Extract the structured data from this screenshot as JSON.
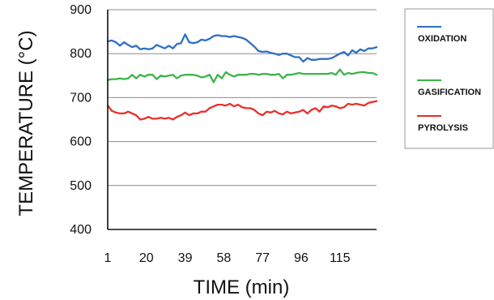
{
  "chart_data": {
    "type": "line",
    "xlabel": "TIME (min)",
    "ylabel": "TEMPERATURE (°C)",
    "xlim": [
      1,
      133
    ],
    "ylim": [
      400,
      900
    ],
    "x_ticks": [
      1,
      20,
      39,
      58,
      77,
      96,
      115
    ],
    "y_ticks": [
      900,
      800,
      700,
      600,
      500,
      400
    ],
    "grid": "horizontal",
    "legend_position": "right",
    "x": [
      1,
      3,
      5,
      7,
      9,
      11,
      13,
      15,
      17,
      19,
      21,
      23,
      25,
      27,
      29,
      31,
      33,
      35,
      37,
      39,
      41,
      43,
      45,
      47,
      49,
      51,
      53,
      55,
      57,
      59,
      61,
      63,
      65,
      67,
      69,
      71,
      73,
      75,
      77,
      79,
      81,
      83,
      85,
      87,
      89,
      91,
      93,
      95,
      97,
      99,
      101,
      103,
      105,
      107,
      109,
      111,
      113,
      115,
      117,
      119,
      121,
      123,
      125,
      127,
      129,
      131,
      133
    ],
    "series": [
      {
        "name": "OXIDATION",
        "color": "#2f6fc2",
        "values": [
          828,
          830,
          826,
          818,
          826,
          820,
          815,
          818,
          810,
          812,
          810,
          812,
          820,
          816,
          812,
          818,
          812,
          822,
          824,
          844,
          826,
          824,
          826,
          832,
          830,
          834,
          840,
          842,
          840,
          840,
          838,
          840,
          838,
          836,
          832,
          824,
          816,
          806,
          804,
          805,
          802,
          800,
          797,
          800,
          800,
          796,
          792,
          792,
          782,
          790,
          786,
          786,
          788,
          788,
          788,
          790,
          795,
          800,
          804,
          796,
          808,
          802,
          810,
          806,
          812,
          812,
          815
        ]
      },
      {
        "name": "GASIFICATION",
        "color": "#3db34a",
        "values": [
          740,
          742,
          742,
          744,
          742,
          744,
          752,
          744,
          752,
          748,
          752,
          752,
          742,
          750,
          748,
          750,
          752,
          744,
          750,
          752,
          752,
          752,
          750,
          746,
          748,
          752,
          735,
          752,
          744,
          758,
          752,
          748,
          752,
          752,
          752,
          754,
          754,
          752,
          754,
          754,
          752,
          752,
          754,
          744,
          752,
          752,
          754,
          756,
          754,
          754,
          754,
          754,
          754,
          754,
          754,
          756,
          752,
          764,
          752,
          756,
          754,
          756,
          758,
          758,
          756,
          756,
          752
        ]
      },
      {
        "name": "PYROLYSIS",
        "color": "#e8302a",
        "values": [
          682,
          670,
          666,
          664,
          664,
          668,
          664,
          660,
          650,
          652,
          656,
          652,
          652,
          654,
          652,
          654,
          650,
          656,
          660,
          666,
          660,
          664,
          664,
          668,
          668,
          676,
          680,
          684,
          684,
          682,
          686,
          680,
          684,
          678,
          676,
          676,
          672,
          664,
          660,
          668,
          666,
          670,
          664,
          662,
          668,
          664,
          666,
          668,
          672,
          664,
          672,
          676,
          668,
          680,
          678,
          682,
          680,
          676,
          678,
          686,
          684,
          686,
          684,
          682,
          688,
          690,
          692
        ]
      }
    ]
  }
}
